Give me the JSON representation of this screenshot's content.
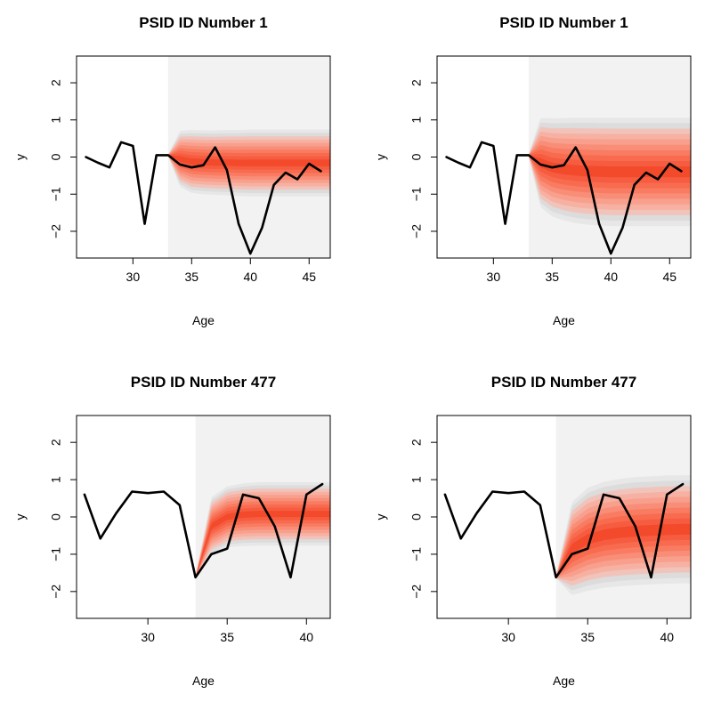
{
  "chart_data": [
    {
      "type": "line",
      "title": "PSID ID Number  1",
      "xlabel": "Age",
      "ylabel": "y",
      "xlim": [
        25.2,
        46.8
      ],
      "ylim": [
        -2.72,
        2.72
      ],
      "xticks": [
        30,
        35,
        40,
        45
      ],
      "yticks": [
        -2,
        -1,
        0,
        1,
        2
      ],
      "forecast_start": 33,
      "fan_color": "#f44a2c",
      "background_shade": "#f2f2f2",
      "series": [
        {
          "x": [
            26,
            27,
            28,
            29,
            30,
            31,
            32,
            33,
            34,
            35,
            36,
            37,
            38,
            39,
            40,
            41,
            42,
            43,
            44,
            45,
            46
          ],
          "values": [
            0.0,
            -0.15,
            -0.28,
            0.4,
            0.3,
            -1.8,
            0.05,
            0.05,
            -0.2,
            -0.28,
            -0.22,
            0.26,
            -0.35,
            -1.8,
            -2.6,
            -1.9,
            -0.75,
            -0.42,
            -0.6,
            -0.18,
            -0.38
          ]
        }
      ],
      "fan": {
        "x": [
          33,
          34,
          35,
          36,
          37,
          38,
          39,
          40,
          41,
          42,
          43,
          44,
          45,
          46,
          46.8
        ],
        "center": [
          0.05,
          -0.05,
          -0.12,
          -0.14,
          -0.15,
          -0.15,
          -0.16,
          -0.16,
          -0.16,
          -0.16,
          -0.16,
          -0.16,
          -0.16,
          -0.16,
          -0.16
        ],
        "halfwidth": [
          0.02,
          0.75,
          0.85,
          0.86,
          0.87,
          0.88,
          0.89,
          0.9,
          0.9,
          0.9,
          0.9,
          0.9,
          0.9,
          0.9,
          0.9
        ]
      }
    },
    {
      "type": "line",
      "title": "PSID ID Number  1",
      "xlabel": "Age",
      "ylabel": "y",
      "xlim": [
        25.2,
        46.8
      ],
      "ylim": [
        -2.72,
        2.72
      ],
      "xticks": [
        30,
        35,
        40,
        45
      ],
      "yticks": [
        -2,
        -1,
        0,
        1,
        2
      ],
      "forecast_start": 33,
      "fan_color": "#f44a2c",
      "background_shade": "#f2f2f2",
      "series": [
        {
          "x": [
            26,
            27,
            28,
            29,
            30,
            31,
            32,
            33,
            34,
            35,
            36,
            37,
            38,
            39,
            40,
            41,
            42,
            43,
            44,
            45,
            46
          ],
          "values": [
            0.0,
            -0.15,
            -0.28,
            0.4,
            0.3,
            -1.8,
            0.05,
            0.05,
            -0.2,
            -0.28,
            -0.22,
            0.26,
            -0.35,
            -1.8,
            -2.6,
            -1.9,
            -0.75,
            -0.42,
            -0.6,
            -0.18,
            -0.38
          ]
        }
      ],
      "fan": {
        "x": [
          33,
          34,
          35,
          36,
          37,
          38,
          39,
          40,
          41,
          42,
          43,
          44,
          45,
          46,
          46.8
        ],
        "center": [
          0.05,
          -0.15,
          -0.28,
          -0.33,
          -0.36,
          -0.38,
          -0.39,
          -0.4,
          -0.4,
          -0.4,
          -0.4,
          -0.4,
          -0.4,
          -0.4,
          -0.4
        ],
        "halfwidth": [
          0.02,
          1.2,
          1.32,
          1.38,
          1.42,
          1.44,
          1.45,
          1.46,
          1.46,
          1.46,
          1.46,
          1.46,
          1.46,
          1.46,
          1.46
        ]
      }
    },
    {
      "type": "line",
      "title": "PSID ID Number  477",
      "xlabel": "Age",
      "ylabel": "y",
      "xlim": [
        25.5,
        41.5
      ],
      "ylim": [
        -2.72,
        2.72
      ],
      "xticks": [
        30,
        35,
        40
      ],
      "yticks": [
        -2,
        -1,
        0,
        1,
        2
      ],
      "forecast_start": 33,
      "fan_color": "#f44a2c",
      "background_shade": "#f2f2f2",
      "series": [
        {
          "x": [
            26,
            27,
            28,
            29,
            30,
            31,
            32,
            33,
            34,
            35,
            36,
            37,
            38,
            39,
            40,
            41
          ],
          "values": [
            0.6,
            -0.58,
            0.1,
            0.68,
            0.64,
            0.68,
            0.32,
            -1.62,
            -1.0,
            -0.85,
            0.6,
            0.5,
            -0.25,
            -1.62,
            0.6,
            0.88
          ]
        }
      ],
      "fan": {
        "x": [
          33,
          34,
          35,
          36,
          37,
          38,
          39,
          40,
          41,
          41.5
        ],
        "center": [
          -1.62,
          -0.25,
          0.0,
          0.06,
          0.08,
          0.08,
          0.08,
          0.08,
          0.08,
          0.08
        ],
        "halfwidth": [
          0.02,
          0.78,
          0.82,
          0.84,
          0.85,
          0.85,
          0.85,
          0.85,
          0.85,
          0.85
        ]
      }
    },
    {
      "type": "line",
      "title": "PSID ID Number  477",
      "xlabel": "Age",
      "ylabel": "y",
      "xlim": [
        25.5,
        41.5
      ],
      "ylim": [
        -2.72,
        2.72
      ],
      "xticks": [
        30,
        35,
        40
      ],
      "yticks": [
        -2,
        -1,
        0,
        1,
        2
      ],
      "forecast_start": 33,
      "fan_color": "#f44a2c",
      "background_shade": "#f2f2f2",
      "series": [
        {
          "x": [
            26,
            27,
            28,
            29,
            30,
            31,
            32,
            33,
            34,
            35,
            36,
            37,
            38,
            39,
            40,
            41
          ],
          "values": [
            0.6,
            -0.58,
            0.1,
            0.68,
            0.64,
            0.68,
            0.32,
            -1.62,
            -1.0,
            -0.85,
            0.6,
            0.5,
            -0.25,
            -1.62,
            0.6,
            0.88
          ]
        }
      ],
      "fan": {
        "x": [
          33,
          34,
          35,
          36,
          37,
          38,
          39,
          40,
          41,
          41.5
        ],
        "center": [
          -1.62,
          -0.85,
          -0.6,
          -0.48,
          -0.42,
          -0.38,
          -0.36,
          -0.34,
          -0.33,
          -0.33
        ],
        "halfwidth": [
          0.02,
          1.25,
          1.38,
          1.42,
          1.44,
          1.45,
          1.45,
          1.45,
          1.45,
          1.45
        ]
      }
    }
  ]
}
